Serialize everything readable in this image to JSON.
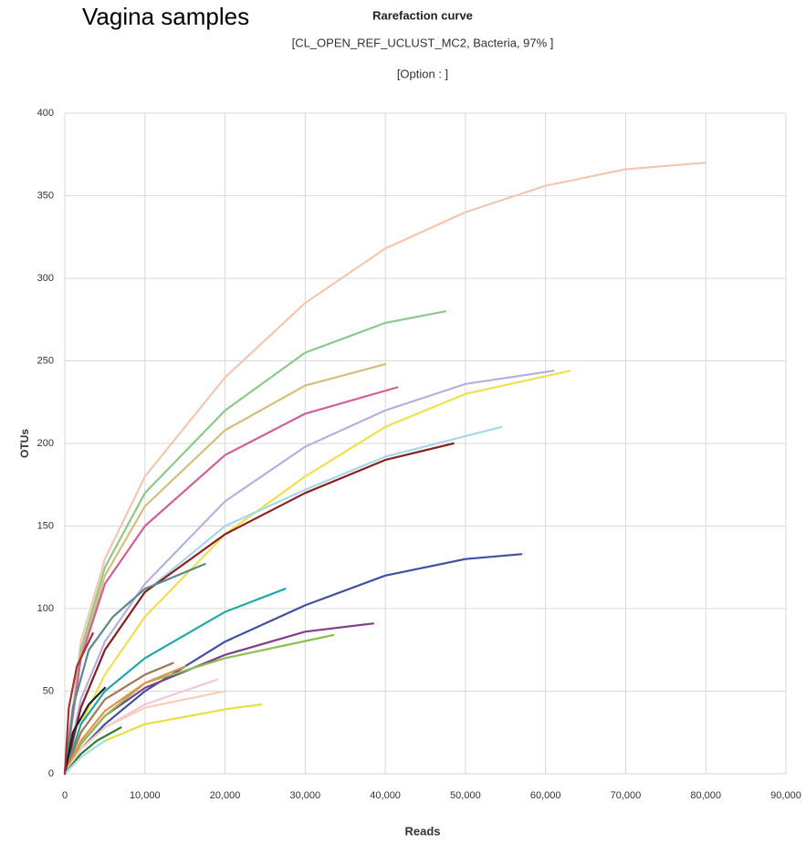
{
  "chart_data": {
    "type": "line",
    "heading": "Vagina samples",
    "title": "Rarefaction curve",
    "subtitles": [
      "[CL_OPEN_REF_UCLUST_MC2, Bacteria, 97% ]",
      "[Option : ]"
    ],
    "x_label": "Reads",
    "y_label": "OTUs",
    "xlim": [
      0,
      90000
    ],
    "ylim": [
      0,
      400
    ],
    "xticks": [
      0,
      {
        "value": 10000,
        "label": "10,000"
      },
      {
        "value": 20000,
        "label": "20,000"
      },
      {
        "value": 30000,
        "label": "30,000"
      },
      {
        "value": 40000,
        "label": "40,000"
      },
      {
        "value": 50000,
        "label": "50,000"
      },
      {
        "value": 60000,
        "label": "60,000"
      },
      {
        "value": 70000,
        "label": "70,000"
      },
      {
        "value": 80000,
        "label": "80,000"
      },
      {
        "value": 90000,
        "label": "90,000"
      }
    ],
    "yticks": [
      0,
      50,
      100,
      150,
      200,
      250,
      300,
      350,
      400
    ],
    "grid": true,
    "series": [
      {
        "color": "#f4c7b0",
        "x": [
          0,
          2000,
          5000,
          10000,
          20000,
          30000,
          40000,
          50000,
          60000,
          70000,
          80000
        ],
        "values": [
          0,
          80,
          130,
          180,
          240,
          285,
          318,
          340,
          356,
          366,
          370
        ]
      },
      {
        "color": "#8cc98c",
        "x": [
          0,
          2000,
          5000,
          10000,
          20000,
          30000,
          40000,
          47500
        ],
        "values": [
          0,
          75,
          125,
          170,
          220,
          255,
          273,
          280
        ]
      },
      {
        "color": "#d4bf7a",
        "x": [
          0,
          2000,
          5000,
          10000,
          20000,
          30000,
          40000
        ],
        "values": [
          0,
          72,
          120,
          162,
          208,
          235,
          248
        ]
      },
      {
        "color": "#d0609a",
        "x": [
          0,
          2000,
          5000,
          10000,
          20000,
          30000,
          41500
        ],
        "values": [
          0,
          70,
          115,
          150,
          193,
          218,
          234
        ]
      },
      {
        "color": "#b8b0dc",
        "x": [
          0,
          2000,
          5000,
          10000,
          20000,
          30000,
          40000,
          50000,
          61000
        ],
        "values": [
          0,
          45,
          80,
          115,
          165,
          198,
          220,
          236,
          244
        ]
      },
      {
        "color": "#f0e050",
        "x": [
          0,
          2000,
          5000,
          10000,
          20000,
          30000,
          40000,
          50000,
          63000
        ],
        "values": [
          0,
          30,
          60,
          95,
          145,
          180,
          210,
          230,
          244
        ]
      },
      {
        "color": "#a8d8e8",
        "x": [
          0,
          2000,
          5000,
          10000,
          20000,
          30000,
          40000,
          54500
        ],
        "values": [
          0,
          40,
          75,
          110,
          150,
          172,
          192,
          210
        ]
      },
      {
        "color": "#8b2020",
        "x": [
          0,
          2000,
          5000,
          10000,
          20000,
          30000,
          40000,
          48500
        ],
        "values": [
          0,
          40,
          75,
          110,
          145,
          170,
          190,
          200
        ]
      },
      {
        "color": "#5a8a8a",
        "x": [
          0,
          1000,
          3000,
          6000,
          10000,
          17500
        ],
        "values": [
          0,
          40,
          75,
          95,
          112,
          127
        ]
      },
      {
        "color": "#20a8a8",
        "x": [
          0,
          2000,
          5000,
          10000,
          20000,
          27500
        ],
        "values": [
          0,
          30,
          50,
          70,
          98,
          112
        ]
      },
      {
        "color": "#4050a0",
        "x": [
          0,
          2000,
          5000,
          10000,
          20000,
          30000,
          40000,
          50000,
          57000
        ],
        "values": [
          0,
          15,
          30,
          50,
          80,
          102,
          120,
          130,
          133
        ]
      },
      {
        "color": "#80408a",
        "x": [
          0,
          2000,
          5000,
          10000,
          20000,
          30000,
          38500
        ],
        "values": [
          0,
          18,
          35,
          52,
          72,
          86,
          91
        ]
      },
      {
        "color": "#8cc050",
        "x": [
          0,
          2000,
          5000,
          10000,
          20000,
          33500
        ],
        "values": [
          0,
          18,
          35,
          55,
          70,
          84
        ]
      },
      {
        "color": "#a07858",
        "x": [
          0,
          2000,
          5000,
          10000,
          13500
        ],
        "values": [
          0,
          25,
          45,
          60,
          67
        ]
      },
      {
        "color": "#e89050",
        "x": [
          0,
          2000,
          5000,
          10000,
          15000
        ],
        "values": [
          0,
          20,
          38,
          55,
          65
        ]
      },
      {
        "color": "#f0c8d8",
        "x": [
          0,
          2000,
          5000,
          10000,
          19000
        ],
        "values": [
          0,
          15,
          28,
          42,
          57
        ]
      },
      {
        "color": "#f8d0b8",
        "x": [
          0,
          2000,
          5000,
          10000,
          20000
        ],
        "values": [
          0,
          15,
          28,
          40,
          50
        ]
      },
      {
        "color": "#e8e040",
        "x": [
          0,
          2000,
          5000,
          10000,
          20000,
          24500
        ],
        "values": [
          0,
          10,
          20,
          30,
          39,
          42
        ]
      },
      {
        "color": "#2a7a40",
        "x": [
          0,
          2000,
          4000,
          7000
        ],
        "values": [
          0,
          12,
          20,
          28
        ]
      },
      {
        "color": "#202020",
        "x": [
          0,
          1000,
          3000,
          5000
        ],
        "values": [
          0,
          25,
          42,
          52
        ]
      },
      {
        "color": "#a8e0e8",
        "x": [
          0,
          2000,
          5000
        ],
        "values": [
          0,
          10,
          20
        ]
      },
      {
        "color": "#a83030",
        "x": [
          0,
          500,
          1500,
          3500
        ],
        "values": [
          0,
          40,
          65,
          85
        ]
      }
    ]
  }
}
